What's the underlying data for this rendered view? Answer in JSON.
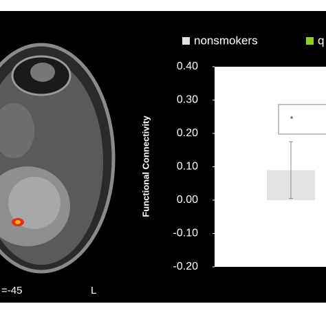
{
  "brain_panel": {
    "slice_label": "=-45",
    "side_label": "L"
  },
  "chart_data": {
    "type": "bar",
    "categories": [
      null
    ],
    "series": [
      {
        "name": "nonsmokers",
        "color": "#e3e3e3",
        "values": [
          0.09
        ],
        "errors": [
          0.085
        ]
      },
      {
        "name": "q",
        "color": "#8cd11e",
        "values": [
          null
        ],
        "errors": [
          null
        ]
      }
    ],
    "y_label": "Functional Connectivity",
    "significance": "*",
    "ylim": [
      -0.2,
      0.4
    ],
    "yticks": [
      {
        "value": 0.4,
        "label": "0.40"
      },
      {
        "value": 0.3,
        "label": "0.30"
      },
      {
        "value": 0.2,
        "label": "0.20"
      },
      {
        "value": 0.1,
        "label": "0.10"
      },
      {
        "value": 0,
        "label": "0.00"
      },
      {
        "value": -0.1,
        "label": "-0.10"
      },
      {
        "value": -0.2,
        "label": "-0.20"
      }
    ]
  }
}
